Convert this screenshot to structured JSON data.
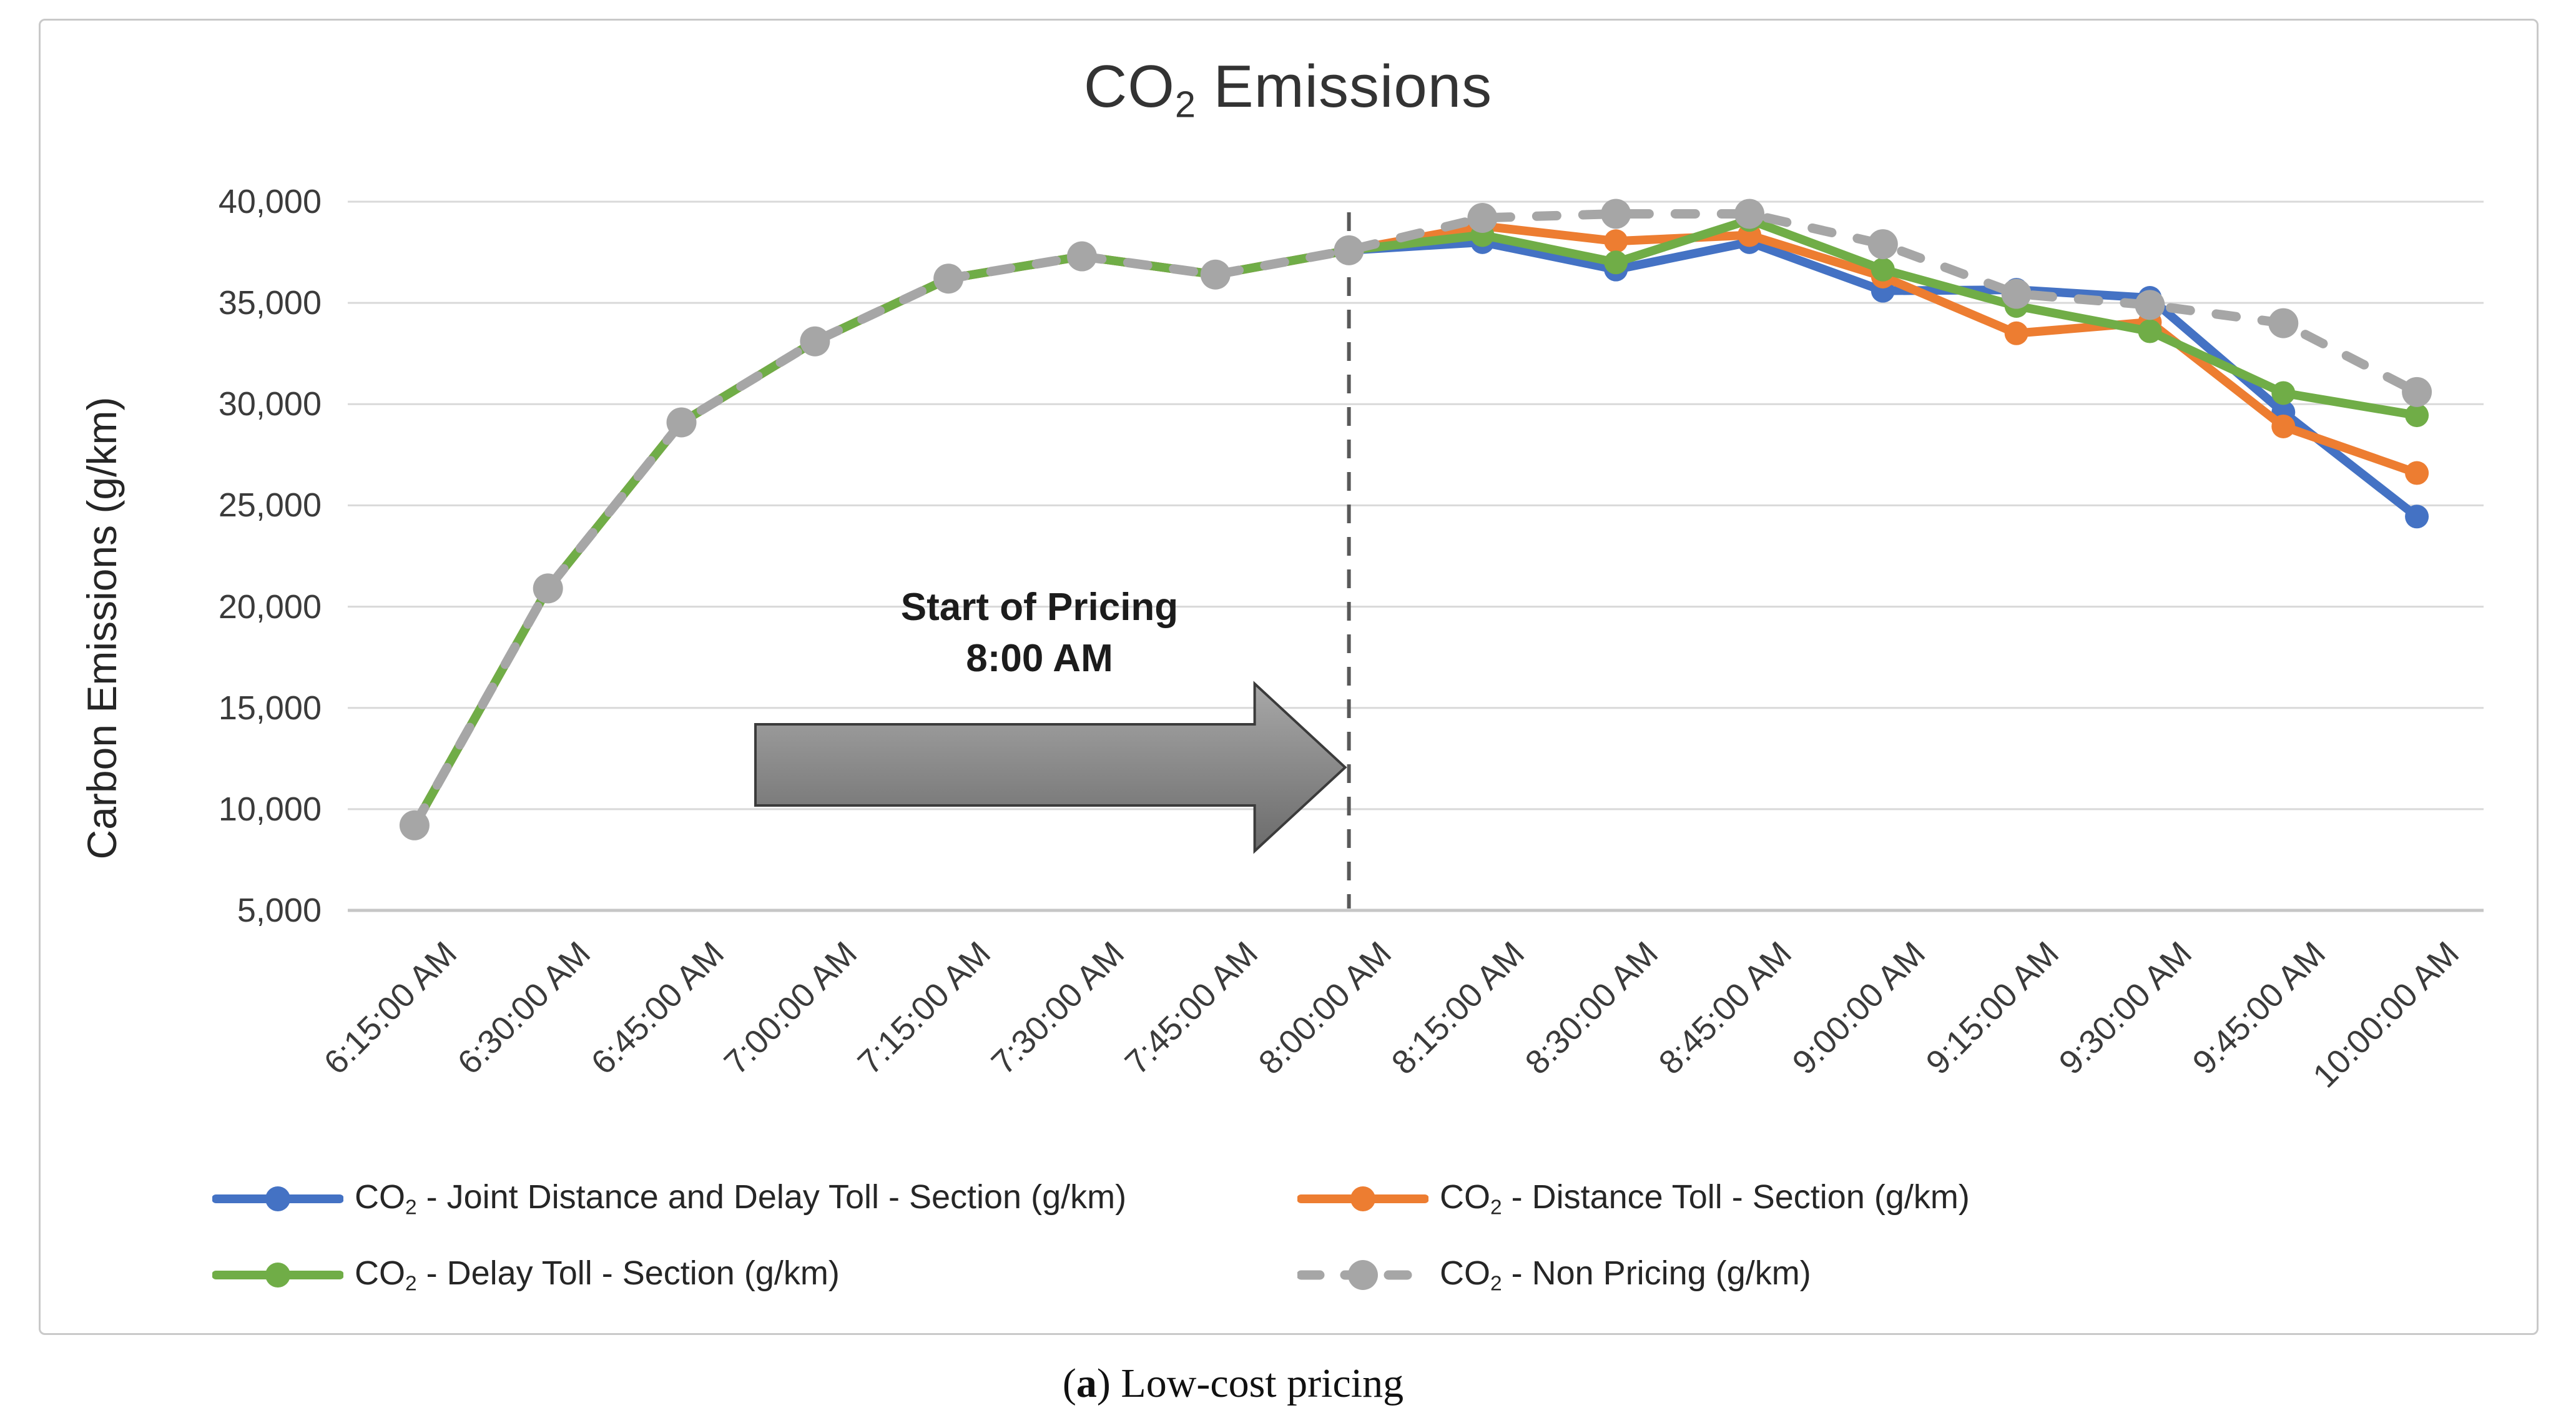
{
  "title": {
    "prefix": "CO",
    "sub": "2",
    "suffix": " Emissions"
  },
  "y_axis": {
    "title": "Carbon Emissions (g/km)",
    "tick_labels": [
      "5,000",
      "10,000",
      "15,000",
      "20,000",
      "25,000",
      "30,000",
      "35,000",
      "40,000"
    ],
    "min": 5000,
    "max": 40000,
    "step": 5000
  },
  "x_axis": {
    "categories": [
      "6:15:00 AM",
      "6:30:00 AM",
      "6:45:00 AM",
      "7:00:00 AM",
      "7:15:00 AM",
      "7:30:00 AM",
      "7:45:00 AM",
      "8:00:00 AM",
      "8:15:00 AM",
      "8:30:00 AM",
      "8:45:00 AM",
      "9:00:00 AM",
      "9:15:00 AM",
      "9:30:00 AM",
      "9:45:00 AM",
      "10:00:00 AM"
    ]
  },
  "annotation": {
    "line1": "Start of Pricing",
    "line2": "8:00 AM",
    "arrow_icon": "right-arrow",
    "vline_category": "8:00:00 AM"
  },
  "caption": {
    "open": "(",
    "letter": "a",
    "close": ")",
    "text": " Low-cost pricing"
  },
  "colors": {
    "joint_blue": "#4472C4",
    "distance_orange": "#ED7D31",
    "delay_green": "#70AD47",
    "non_pricing_gray": "#A6A6A6",
    "gridline": "#D9D9D9",
    "axis_line": "#C6C6C6",
    "vline": "#595959",
    "arrow_fill_top": "#a8a8a8",
    "arrow_fill_bottom": "#6b6b6b",
    "arrow_border": "#3b3b3b"
  },
  "chart_data": {
    "type": "line",
    "title": "CO2 Emissions",
    "xlabel": "",
    "ylabel": "Carbon Emissions (g/km)",
    "ylim": [
      5000,
      40000
    ],
    "grid": "horizontal",
    "legend_position": "bottom",
    "x": [
      "6:15:00 AM",
      "6:30:00 AM",
      "6:45:00 AM",
      "7:00:00 AM",
      "7:15:00 AM",
      "7:30:00 AM",
      "7:45:00 AM",
      "8:00:00 AM",
      "8:15:00 AM",
      "8:30:00 AM",
      "8:45:00 AM",
      "9:00:00 AM",
      "9:15:00 AM",
      "9:30:00 AM",
      "9:45:00 AM",
      "10:00:00 AM"
    ],
    "annotation_note": "Vertical dashed line and arrow mark Start of Pricing at 8:00 AM; all series overlap before 8:00 AM",
    "series": [
      {
        "name": "CO2 - Joint Distance and Delay Toll - Section (g/km)",
        "label_parts": {
          "pre": "CO",
          "sub": "2",
          "post": " - Joint Distance and Delay Toll - Section (g/km)"
        },
        "color": "#4472C4",
        "style": "solid",
        "marker": "circle",
        "values": [
          9200,
          20900,
          29100,
          33100,
          36200,
          37300,
          36400,
          37600,
          38000,
          36650,
          38000,
          35600,
          35650,
          35250,
          29600,
          24450
        ]
      },
      {
        "name": "CO2 - Distance Toll - Section (g/km)",
        "label_parts": {
          "pre": "CO",
          "sub": "2",
          "post": " - Distance Toll - Section (g/km)"
        },
        "color": "#ED7D31",
        "style": "solid",
        "marker": "circle",
        "values": [
          9200,
          20900,
          29100,
          33100,
          36200,
          37300,
          36400,
          37600,
          38800,
          38050,
          38350,
          36300,
          33500,
          34050,
          28900,
          26600
        ]
      },
      {
        "name": "CO2 - Delay Toll - Section (g/km)",
        "label_parts": {
          "pre": "CO",
          "sub": "2",
          "post": " - Delay Toll - Section (g/km)"
        },
        "color": "#70AD47",
        "style": "solid",
        "marker": "circle",
        "values": [
          9200,
          20900,
          29100,
          33100,
          36200,
          37300,
          36400,
          37600,
          38350,
          37000,
          39100,
          36650,
          34850,
          33600,
          30550,
          29450
        ]
      },
      {
        "name": "CO2 - Non Pricing (g/km)",
        "label_parts": {
          "pre": "CO",
          "sub": "2",
          "post": " - Non Pricing (g/km)"
        },
        "color": "#A6A6A6",
        "style": "dashed",
        "marker": "circle",
        "values": [
          9200,
          20900,
          29100,
          33100,
          36200,
          37300,
          36400,
          37600,
          39200,
          39400,
          39400,
          37900,
          35450,
          34900,
          34000,
          30600
        ]
      }
    ]
  },
  "legend_layout": {
    "columns": [
      340,
      2078
    ],
    "rows": [
      1888,
      2010
    ]
  }
}
